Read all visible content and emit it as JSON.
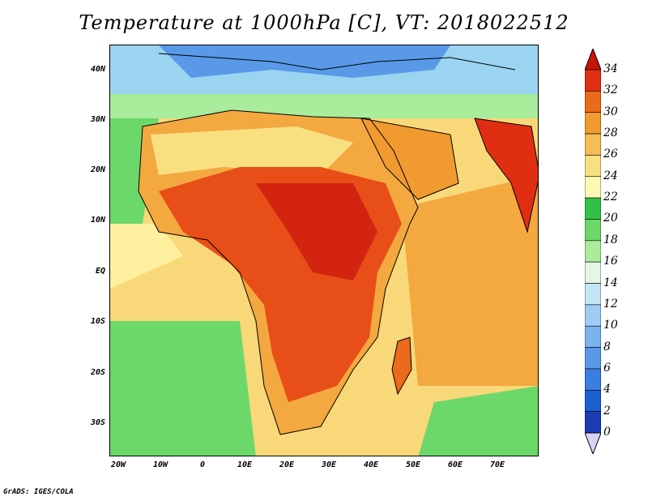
{
  "title": "Temperature at 1000hPa [C], VT: 2018022512",
  "credit": "GrADS: IGES/COLA",
  "lat_labels": [
    "40N",
    "30N",
    "20N",
    "10N",
    "EQ",
    "10S",
    "20S",
    "30S"
  ],
  "lon_labels": [
    "20W",
    "10W",
    "0",
    "10E",
    "20E",
    "30E",
    "40E",
    "50E",
    "60E",
    "70E"
  ],
  "colorbar": {
    "levels": [
      "0",
      "2",
      "4",
      "6",
      "8",
      "10",
      "12",
      "14",
      "16",
      "18",
      "20",
      "22",
      "24",
      "26",
      "28",
      "30",
      "32",
      "34"
    ],
    "colors": [
      "#1a0e8c",
      "#1c3cb4",
      "#1e5fd0",
      "#3a7ee0",
      "#5a99e8",
      "#7ab4ef",
      "#a0ccf4",
      "#c6e4f8",
      "#e2f6e6",
      "#a8ec9c",
      "#6cd86a",
      "#34c048",
      "#fff8b4",
      "#f8e080",
      "#f4bc54",
      "#f09a30",
      "#ec6a1c",
      "#e02e12",
      "#c81408"
    ]
  },
  "map": {
    "colors": {
      "ocean_cold": "#9ad4f0",
      "ocean_cool": "#bde6f6",
      "green": "#6cd86a",
      "pale_yellow": "#fff0a0",
      "warm_ocean": "#f8d878",
      "orange": "#f4a840",
      "hot": "#e84e18",
      "hottest": "#d22410"
    }
  }
}
